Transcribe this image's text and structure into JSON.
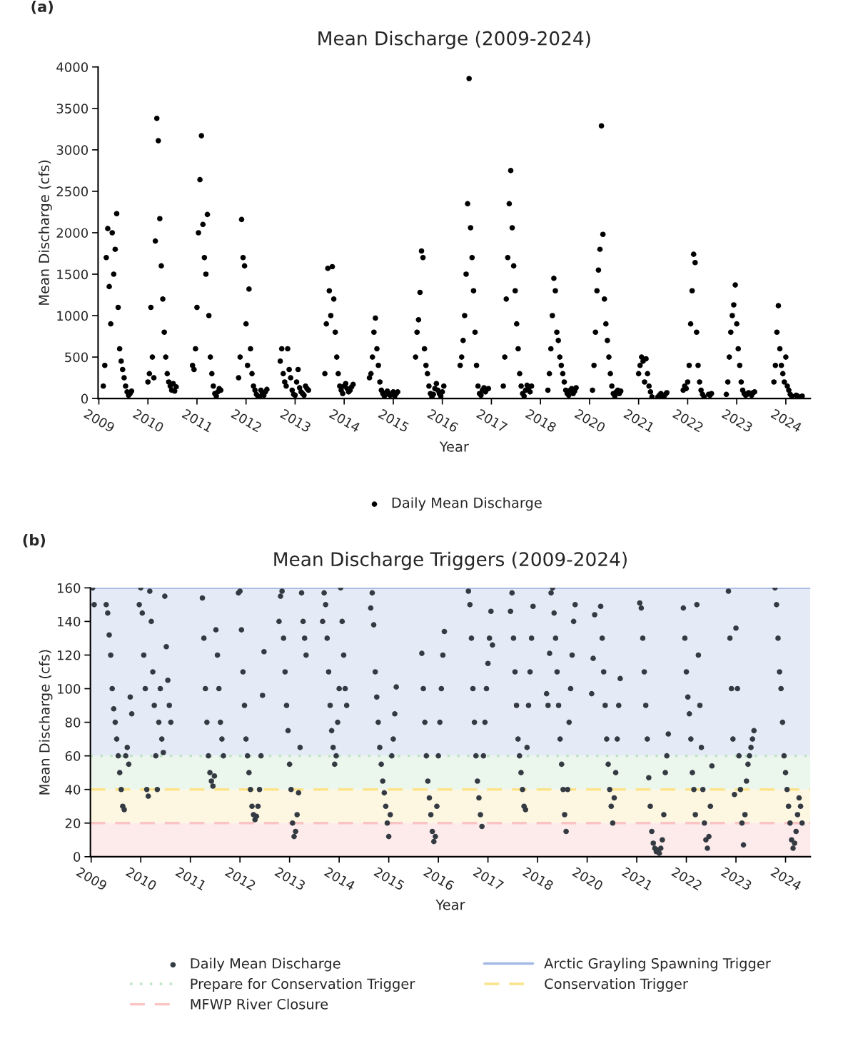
{
  "chart_data": [
    {
      "type": "scatter",
      "title": "Mean Discharge (2009-2024)",
      "xlabel": "Year",
      "ylabel": "Mean Discharge (cfs)",
      "annotations": [
        "(a)"
      ],
      "categories": [
        "2009",
        null,
        null,
        null,
        null,
        null,
        null,
        null,
        null,
        null,
        null,
        null,
        null,
        null,
        null,
        null,
        null,
        null,
        null,
        null,
        null,
        null,
        null,
        null,
        null,
        null,
        null,
        null,
        null,
        null,
        null,
        null,
        null,
        "2010",
        null,
        null,
        null,
        null,
        null,
        null,
        null,
        null,
        null,
        null,
        null,
        null,
        null,
        null,
        null,
        null,
        null,
        null,
        null,
        null,
        null,
        null,
        null,
        null,
        null,
        null,
        null,
        null,
        null,
        null,
        null,
        null,
        "2011",
        null,
        null,
        null,
        null,
        null,
        null,
        null,
        null,
        null,
        null,
        null,
        null,
        null,
        null,
        null,
        null,
        null,
        null,
        null,
        null,
        null,
        null,
        null,
        null,
        null,
        null,
        null,
        null,
        null,
        null,
        null,
        null,
        "2012",
        null,
        null,
        null,
        null,
        null,
        null,
        null,
        null,
        null,
        null,
        null,
        null,
        null,
        null,
        null,
        null,
        null,
        null,
        null,
        null,
        null,
        null,
        null,
        null,
        null,
        null,
        null,
        null,
        null,
        null,
        null,
        null,
        "2013",
        null,
        null,
        null,
        null,
        null,
        null,
        null,
        null,
        null,
        null,
        null,
        null,
        null,
        null,
        null,
        null,
        null,
        null,
        null,
        null,
        null,
        null,
        null,
        null,
        null,
        null,
        null,
        null,
        null,
        null,
        null,
        null,
        "2014",
        null,
        null,
        null,
        null,
        null,
        null,
        null,
        null,
        null,
        null,
        null,
        null,
        null,
        null,
        null,
        null,
        null,
        null,
        null,
        null,
        null,
        null,
        null,
        null,
        null,
        null,
        null,
        null,
        null,
        null,
        null,
        null,
        "2015",
        null,
        null,
        null,
        null,
        null,
        null,
        null,
        null,
        null,
        null,
        null,
        null,
        null,
        null,
        null,
        null,
        null,
        null,
        null,
        null,
        null,
        null,
        null,
        null,
        null,
        null,
        null,
        null,
        null,
        null,
        null,
        null,
        "2016",
        null,
        null,
        null,
        null,
        null,
        null,
        null,
        null,
        null,
        null,
        null,
        null,
        null,
        null,
        null,
        null,
        null,
        null,
        null,
        null,
        null,
        null,
        null,
        null,
        null,
        null,
        null,
        null,
        null,
        null,
        null,
        null,
        "2017",
        null,
        null,
        null,
        null,
        null,
        null,
        null,
        null,
        null,
        null,
        null,
        null,
        null,
        null,
        null,
        null,
        null,
        null,
        null,
        null,
        null,
        null,
        null,
        null,
        null,
        null,
        null,
        null,
        null,
        null,
        null,
        null,
        "2018",
        null,
        null,
        null,
        null,
        null,
        null,
        null,
        null,
        null,
        null,
        null,
        null,
        null,
        null,
        null,
        null,
        null,
        null,
        null,
        null,
        null,
        null,
        null,
        null,
        null,
        null,
        null,
        null,
        null,
        null,
        null,
        null,
        "2020",
        null,
        null,
        null,
        null,
        null,
        null,
        null,
        null,
        null,
        null,
        null,
        null,
        null,
        null,
        null,
        null,
        null,
        null,
        null,
        null,
        null,
        null,
        null,
        null,
        null,
        null,
        null,
        null,
        null,
        null,
        null,
        null,
        "2021",
        null,
        null,
        null,
        null,
        null,
        null,
        null,
        null,
        null,
        null,
        null,
        null,
        null,
        null,
        null,
        null,
        null,
        null,
        null,
        null,
        null,
        null,
        null,
        null,
        null,
        null,
        null,
        null,
        null,
        null,
        null,
        null,
        "2022",
        null,
        null,
        null,
        null,
        null,
        null,
        null,
        null,
        null,
        null,
        null,
        null,
        null,
        null,
        null,
        null,
        null,
        null,
        null,
        null,
        null,
        null,
        null,
        null,
        null,
        null,
        null,
        null,
        null,
        null,
        null,
        null,
        "2023",
        null,
        null,
        null,
        null,
        null,
        null,
        null,
        null,
        null,
        null,
        null,
        null,
        null,
        null,
        null,
        null,
        null,
        null,
        null,
        null,
        null,
        null,
        null,
        null,
        null,
        null,
        null,
        null,
        null,
        null,
        null,
        null,
        "2024",
        null,
        null,
        null,
        null,
        null,
        null,
        null,
        null,
        null,
        null,
        null,
        null,
        null,
        null,
        null,
        null
      ],
      "ylim": [
        0,
        4000
      ],
      "yticks": [
        0,
        500,
        1000,
        1500,
        2000,
        2500,
        3000,
        3500,
        4000
      ],
      "grid": false,
      "legend": "bottom",
      "marker": "circle",
      "series": [
        {
          "name": "Daily Mean Discharge",
          "color": "#000000",
          "values": [
            null,
            null,
            null,
            150,
            400,
            1700,
            2050,
            1350,
            900,
            2000,
            1500,
            1800,
            2230,
            1100,
            600,
            450,
            350,
            250,
            150,
            80,
            40,
            60,
            90,
            null,
            null,
            null,
            null,
            null,
            null,
            null,
            null,
            null,
            null,
            200,
            300,
            1100,
            500,
            250,
            1900,
            3380,
            3110,
            2170,
            1600,
            1200,
            800,
            500,
            300,
            200,
            150,
            100,
            180,
            90,
            140,
            null,
            null,
            null,
            null,
            null,
            null,
            null,
            null,
            null,
            null,
            400,
            350,
            600,
            1100,
            2000,
            2640,
            3170,
            2100,
            1700,
            1500,
            2220,
            1000,
            500,
            300,
            150,
            60,
            30,
            80,
            120,
            100,
            null,
            null,
            null,
            null,
            null,
            null,
            null,
            null,
            null,
            null,
            null,
            250,
            500,
            2160,
            1700,
            1600,
            900,
            400,
            1320,
            600,
            300,
            150,
            100,
            50,
            30,
            20,
            100,
            60,
            40,
            80,
            110,
            null,
            null,
            null,
            null,
            null,
            null,
            null,
            null,
            450,
            600,
            300,
            200,
            150,
            600,
            350,
            250,
            100,
            50,
            40,
            200,
            350,
            130,
            80,
            60,
            40,
            150,
            120,
            100,
            null,
            null,
            null,
            null,
            null,
            null,
            null,
            null,
            null,
            null,
            300,
            900,
            1570,
            1300,
            1000,
            1590,
            1200,
            800,
            500,
            300,
            150,
            100,
            60,
            150,
            180,
            120,
            80,
            100,
            140,
            170,
            null,
            null,
            null,
            null,
            null,
            null,
            null,
            null,
            null,
            null,
            250,
            300,
            500,
            800,
            970,
            600,
            400,
            200,
            100,
            60,
            30,
            70,
            90,
            50,
            40,
            60,
            80,
            30,
            60,
            80,
            null,
            null,
            null,
            null,
            null,
            null,
            null,
            null,
            null,
            null,
            null,
            500,
            800,
            950,
            1280,
            1780,
            1700,
            600,
            400,
            300,
            150,
            60,
            20,
            50,
            120,
            180,
            100,
            60,
            30,
            80,
            150,
            null,
            null,
            null,
            null,
            null,
            null,
            null,
            null,
            null,
            null,
            400,
            500,
            700,
            1000,
            1500,
            2350,
            3860,
            2060,
            1700,
            1300,
            800,
            400,
            150,
            60,
            40,
            100,
            130,
            80,
            110,
            120,
            null,
            null,
            null,
            null,
            null,
            null,
            null,
            null,
            null,
            150,
            500,
            1200,
            1700,
            2350,
            2750,
            2060,
            1600,
            1300,
            900,
            600,
            300,
            150,
            60,
            30,
            100,
            160,
            120,
            80,
            150,
            null,
            null,
            null,
            null,
            null,
            null,
            null,
            null,
            null,
            null,
            100,
            300,
            600,
            1000,
            1450,
            1300,
            800,
            700,
            500,
            400,
            300,
            200,
            100,
            60,
            40,
            100,
            120,
            60,
            90,
            130,
            null,
            null,
            null,
            null,
            null,
            null,
            null,
            null,
            null,
            null,
            100,
            400,
            800,
            1300,
            1550,
            1800,
            3290,
            1980,
            1200,
            900,
            700,
            500,
            300,
            150,
            60,
            30,
            80,
            100,
            60,
            90,
            null,
            null,
            null,
            null,
            null,
            null,
            null,
            null,
            null,
            null,
            null,
            300,
            400,
            500,
            450,
            200,
            480,
            300,
            150,
            80,
            20,
            null,
            null,
            null,
            20,
            40,
            60,
            30,
            10,
            50,
            70,
            null,
            null,
            null,
            null,
            null,
            null,
            null,
            null,
            null,
            null,
            100,
            150,
            120,
            200,
            400,
            900,
            1300,
            1740,
            1640,
            800,
            400,
            200,
            100,
            50,
            20,
            null,
            null,
            50,
            40,
            60,
            null,
            null,
            null,
            null,
            null,
            null,
            null,
            null,
            null,
            50,
            200,
            500,
            800,
            1000,
            1130,
            1370,
            900,
            600,
            400,
            200,
            100,
            60,
            40,
            50,
            70,
            null,
            40,
            70,
            80,
            null,
            null,
            null,
            null,
            null,
            null,
            null,
            null,
            null,
            null,
            null,
            null,
            200,
            400,
            800,
            1120,
            600,
            400,
            300,
            200,
            500,
            150,
            100,
            50,
            30,
            null,
            null,
            40,
            30,
            null,
            null,
            30,
            null,
            null,
            null,
            null,
            null
          ]
        }
      ]
    },
    {
      "type": "scatter",
      "title": "Mean Discharge Triggers (2009-2024)",
      "xlabel": "Year",
      "ylabel": "Mean Discharge (cfs)",
      "annotations": [
        "(b)"
      ],
      "categories": [
        "2009",
        null,
        null,
        null,
        null,
        null,
        null,
        null,
        null,
        null,
        null,
        null,
        null,
        null,
        null,
        null,
        null,
        null,
        null,
        null,
        null,
        null,
        null,
        null,
        null,
        null,
        null,
        null,
        null,
        null,
        null,
        null,
        null,
        "2010",
        null,
        null,
        null,
        null,
        null,
        null,
        null,
        null,
        null,
        null,
        null,
        null,
        null,
        null,
        null,
        null,
        null,
        null,
        null,
        null,
        null,
        null,
        null,
        null,
        null,
        null,
        null,
        null,
        null,
        null,
        null,
        null,
        "2011",
        null,
        null,
        null,
        null,
        null,
        null,
        null,
        null,
        null,
        null,
        null,
        null,
        null,
        null,
        null,
        null,
        null,
        null,
        null,
        null,
        null,
        null,
        null,
        null,
        null,
        null,
        null,
        null,
        null,
        null,
        null,
        null,
        "2012",
        null,
        null,
        null,
        null,
        null,
        null,
        null,
        null,
        null,
        null,
        null,
        null,
        null,
        null,
        null,
        null,
        null,
        null,
        null,
        null,
        null,
        null,
        null,
        null,
        null,
        null,
        null,
        null,
        null,
        null,
        null,
        null,
        "2013",
        null,
        null,
        null,
        null,
        null,
        null,
        null,
        null,
        null,
        null,
        null,
        null,
        null,
        null,
        null,
        null,
        null,
        null,
        null,
        null,
        null,
        null,
        null,
        null,
        null,
        null,
        null,
        null,
        null,
        null,
        null,
        null,
        "2014",
        null,
        null,
        null,
        null,
        null,
        null,
        null,
        null,
        null,
        null,
        null,
        null,
        null,
        null,
        null,
        null,
        null,
        null,
        null,
        null,
        null,
        null,
        null,
        null,
        null,
        null,
        null,
        null,
        null,
        null,
        null,
        null,
        "2015",
        null,
        null,
        null,
        null,
        null,
        null,
        null,
        null,
        null,
        null,
        null,
        null,
        null,
        null,
        null,
        null,
        null,
        null,
        null,
        null,
        null,
        null,
        null,
        null,
        null,
        null,
        null,
        null,
        null,
        null,
        null,
        null,
        "2016",
        null,
        null,
        null,
        null,
        null,
        null,
        null,
        null,
        null,
        null,
        null,
        null,
        null,
        null,
        null,
        null,
        null,
        null,
        null,
        null,
        null,
        null,
        null,
        null,
        null,
        null,
        null,
        null,
        null,
        null,
        null,
        null,
        "2017",
        null,
        null,
        null,
        null,
        null,
        null,
        null,
        null,
        null,
        null,
        null,
        null,
        null,
        null,
        null,
        null,
        null,
        null,
        null,
        null,
        null,
        null,
        null,
        null,
        null,
        null,
        null,
        null,
        null,
        null,
        null,
        null,
        "2018",
        null,
        null,
        null,
        null,
        null,
        null,
        null,
        null,
        null,
        null,
        null,
        null,
        null,
        null,
        null,
        null,
        null,
        null,
        null,
        null,
        null,
        null,
        null,
        null,
        null,
        null,
        null,
        null,
        null,
        null,
        null,
        null,
        "2020",
        null,
        null,
        null,
        null,
        null,
        null,
        null,
        null,
        null,
        null,
        null,
        null,
        null,
        null,
        null,
        null,
        null,
        null,
        null,
        null,
        null,
        null,
        null,
        null,
        null,
        null,
        null,
        null,
        null,
        null,
        null,
        null,
        "2021",
        null,
        null,
        null,
        null,
        null,
        null,
        null,
        null,
        null,
        null,
        null,
        null,
        null,
        null,
        null,
        null,
        null,
        null,
        null,
        null,
        null,
        null,
        null,
        null,
        null,
        null,
        null,
        null,
        null,
        null,
        null,
        null,
        "2022",
        null,
        null,
        null,
        null,
        null,
        null,
        null,
        null,
        null,
        null,
        null,
        null,
        null,
        null,
        null,
        null,
        null,
        null,
        null,
        null,
        null,
        null,
        null,
        null,
        null,
        null,
        null,
        null,
        null,
        null,
        null,
        null,
        "2023",
        null,
        null,
        null,
        null,
        null,
        null,
        null,
        null,
        null,
        null,
        null,
        null,
        null,
        null,
        null,
        null,
        null,
        null,
        null,
        null,
        null,
        null,
        null,
        null,
        null,
        null,
        null,
        null,
        null,
        null,
        null,
        null,
        "2024",
        null,
        null,
        null,
        null,
        null,
        null,
        null,
        null,
        null,
        null,
        null,
        null,
        null,
        null,
        null,
        null
      ],
      "ylim": [
        0,
        160
      ],
      "yticks": [
        0,
        20,
        40,
        60,
        80,
        100,
        120,
        140,
        160
      ],
      "grid": false,
      "legend": "bottom",
      "marker": "circle",
      "bands": [
        {
          "axis": "y",
          "from": 60,
          "to": 160,
          "color": "#e5ebf6"
        },
        {
          "axis": "y",
          "from": 40,
          "to": 60,
          "color": "#ebf6ec"
        },
        {
          "axis": "y",
          "from": 20,
          "to": 40,
          "color": "#fdf6e1"
        },
        {
          "axis": "y",
          "from": 0,
          "to": 20,
          "color": "#fdebec"
        }
      ],
      "ref_lines": [
        {
          "axis": "y",
          "value": 160,
          "label": "Arctic Grayling Spawning Trigger",
          "color": "#a4b9e4",
          "line_style": "solid"
        },
        {
          "axis": "y",
          "value": 60,
          "label": "Prepare for Conservation Trigger",
          "color": "#bfe3c4",
          "line_style": "dotted"
        },
        {
          "axis": "y",
          "value": 40,
          "label": "Conservation Trigger",
          "color": "#fbe38a",
          "line_style": "dashed"
        },
        {
          "axis": "y",
          "value": 20,
          "label": "MFWP River Closure",
          "color": "#fbc4c4",
          "line_style": "dashed"
        }
      ],
      "series": [
        {
          "name": "Daily Mean Discharge",
          "color": "#343a42",
          "values": [
            null,
            160,
            150,
            null,
            null,
            null,
            null,
            null,
            null,
            null,
            150,
            145,
            132,
            120,
            100,
            88,
            80,
            70,
            60,
            50,
            40,
            30,
            28,
            60,
            65,
            55,
            95,
            85,
            null,
            null,
            null,
            null,
            150,
            160,
            145,
            120,
            100,
            40,
            36,
            158,
            140,
            110,
            90,
            60,
            40,
            80,
            100,
            70,
            62,
            155,
            125,
            105,
            90,
            80,
            null,
            null,
            null,
            null,
            null,
            null,
            null,
            null,
            null,
            null,
            null,
            null,
            null,
            null,
            null,
            null,
            null,
            null,
            null,
            null,
            154,
            130,
            100,
            80,
            60,
            50,
            45,
            42,
            48,
            135,
            120,
            100,
            80,
            70,
            60,
            null,
            null,
            null,
            null,
            null,
            null,
            null,
            null,
            null,
            157,
            158,
            135,
            110,
            90,
            70,
            60,
            50,
            40,
            30,
            25,
            22,
            24,
            30,
            40,
            60,
            96,
            122,
            null,
            null,
            null,
            null,
            null,
            null,
            null,
            null,
            null,
            140,
            155,
            158,
            130,
            110,
            90,
            75,
            55,
            40,
            20,
            12,
            15,
            25,
            38,
            65,
            157,
            140,
            130,
            120,
            null,
            null,
            null,
            null,
            null,
            null,
            null,
            null,
            null,
            null,
            140,
            157,
            150,
            130,
            110,
            90,
            75,
            65,
            55,
            60,
            80,
            100,
            160,
            140,
            120,
            100,
            90,
            null,
            null,
            null,
            null,
            null,
            null,
            null,
            null,
            null,
            null,
            null,
            null,
            null,
            null,
            null,
            148,
            157,
            138,
            110,
            95,
            80,
            65,
            55,
            45,
            38,
            30,
            20,
            12,
            25,
            60,
            70,
            85,
            101,
            null,
            null,
            null,
            null,
            null,
            null,
            null,
            null,
            null,
            null,
            null,
            null,
            null,
            null,
            null,
            null,
            121,
            100,
            80,
            60,
            45,
            35,
            25,
            15,
            9,
            12,
            30,
            60,
            80,
            100,
            120,
            134,
            null,
            null,
            null,
            null,
            null,
            null,
            null,
            null,
            null,
            null,
            null,
            null,
            null,
            null,
            null,
            158,
            150,
            130,
            100,
            80,
            60,
            45,
            35,
            25,
            18,
            60,
            80,
            100,
            115,
            130,
            146,
            126,
            null,
            null,
            null,
            null,
            null,
            null,
            null,
            null,
            null,
            null,
            null,
            146,
            157,
            130,
            110,
            90,
            70,
            60,
            50,
            40,
            30,
            28,
            65,
            90,
            110,
            130,
            149,
            null,
            null,
            null,
            null,
            null,
            null,
            null,
            null,
            97,
            90,
            121,
            157,
            160,
            145,
            130,
            110,
            90,
            70,
            55,
            40,
            25,
            15,
            40,
            80,
            100,
            120,
            140,
            150,
            null,
            null,
            null,
            null,
            null,
            null,
            null,
            null,
            null,
            null,
            97,
            118,
            144,
            null,
            null,
            null,
            149,
            130,
            110,
            90,
            70,
            55,
            40,
            30,
            20,
            35,
            50,
            70,
            90,
            106,
            null,
            null,
            null,
            null,
            null,
            null,
            null,
            null,
            null,
            null,
            null,
            null,
            151,
            148,
            130,
            110,
            90,
            70,
            47,
            30,
            15,
            8,
            5,
            3,
            4,
            2,
            5,
            10,
            25,
            50,
            60,
            73,
            null,
            null,
            null,
            null,
            null,
            null,
            null,
            null,
            null,
            148,
            130,
            110,
            95,
            85,
            70,
            50,
            40,
            25,
            150,
            120,
            90,
            65,
            40,
            20,
            10,
            5,
            12,
            30,
            54,
            null,
            null,
            null,
            null,
            null,
            null,
            null,
            null,
            null,
            null,
            158,
            130,
            100,
            70,
            37,
            136,
            100,
            60,
            40,
            20,
            7,
            25,
            45,
            55,
            60,
            65,
            70,
            75,
            null,
            null,
            null,
            null,
            null,
            null,
            null,
            null,
            null,
            null,
            null,
            null,
            null,
            160,
            150,
            130,
            110,
            100,
            80,
            60,
            50,
            40,
            30,
            20,
            10,
            5,
            8,
            15,
            25,
            35,
            30,
            20,
            null,
            null,
            null,
            null,
            null
          ]
        }
      ]
    }
  ]
}
